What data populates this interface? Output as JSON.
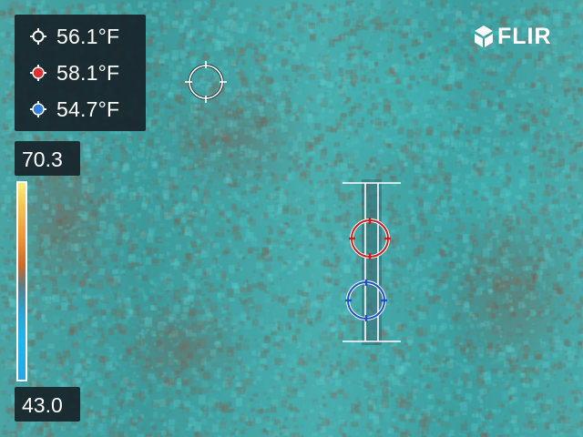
{
  "brand": {
    "logo_text": "FLIR"
  },
  "measurements": [
    {
      "id": "spot",
      "icon": "crosshair-white-icon",
      "color": "#ffffff",
      "value": "56.1°F"
    },
    {
      "id": "max",
      "icon": "crosshair-red-icon",
      "color": "#e03030",
      "value": "58.1°F"
    },
    {
      "id": "min",
      "icon": "crosshair-blue-icon",
      "color": "#3080e0",
      "value": "54.7°F"
    }
  ],
  "temperature_scale": {
    "max_label": "70.3",
    "min_label": "43.0",
    "palette": [
      "#f7ef7a",
      "#e88f35",
      "#c96a2a",
      "#2f9fd0",
      "#27a5e6"
    ]
  },
  "markers": {
    "spot_color": "#ffffff",
    "hot_color": "#c81e1e",
    "cold_color": "#1e4fc8",
    "area_box_color": "#ffffff"
  }
}
